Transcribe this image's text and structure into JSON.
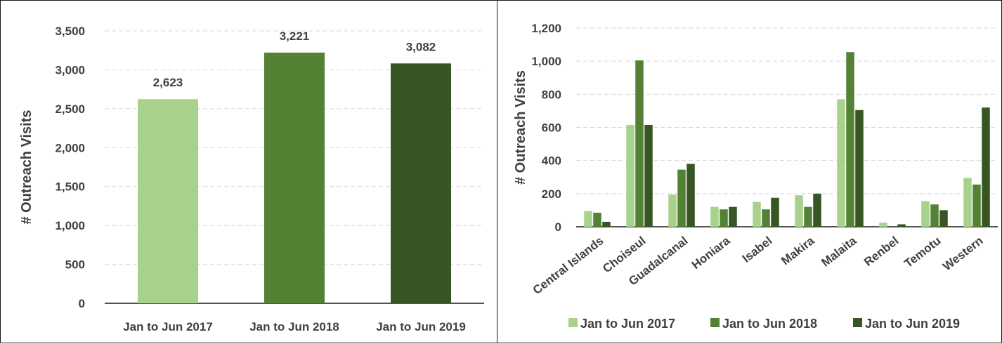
{
  "chart_data": [
    {
      "type": "bar",
      "title": "",
      "xlabel": "",
      "ylabel": "# Outreach Visits",
      "ylim": [
        0,
        3500
      ],
      "yticks": [
        0,
        500,
        1000,
        1500,
        2000,
        2500,
        3000,
        3500
      ],
      "ytick_labels": [
        "0",
        "500",
        "1,000",
        "1,500",
        "2,000",
        "2,500",
        "3,000",
        "3,500"
      ],
      "categories": [
        "Jan to Jun 2017",
        "Jan to Jun 2018",
        "Jan to Jun 2019"
      ],
      "values": [
        2623,
        3221,
        3082
      ],
      "data_labels": [
        "2,623",
        "3,221",
        "3,082"
      ],
      "colors": [
        "#a9d18e",
        "#548235",
        "#375623"
      ],
      "grid": true
    },
    {
      "type": "bar",
      "title": "",
      "xlabel": "",
      "ylabel": "# Outreach Visits",
      "ylim": [
        0,
        1200
      ],
      "yticks": [
        0,
        200,
        400,
        600,
        800,
        1000,
        1200
      ],
      "ytick_labels": [
        "0",
        "200",
        "400",
        "600",
        "800",
        "1,000",
        "1,200"
      ],
      "categories": [
        "Central Islands",
        "Choiseul",
        "Guadalcanal",
        "Honiara",
        "Isabel",
        "Makira",
        "Malaita",
        "Renbel",
        "Temotu",
        "Western"
      ],
      "series": [
        {
          "name": "Jan to Jun 2017",
          "color": "#a9d18e",
          "values": [
            95,
            615,
            195,
            120,
            150,
            190,
            770,
            25,
            155,
            295
          ]
        },
        {
          "name": "Jan to Jun 2018",
          "color": "#548235",
          "values": [
            85,
            1005,
            345,
            105,
            105,
            120,
            1055,
            0,
            135,
            255
          ]
        },
        {
          "name": "Jan to Jun 2019",
          "color": "#375623",
          "values": [
            30,
            615,
            380,
            120,
            175,
            200,
            705,
            15,
            100,
            720
          ]
        }
      ],
      "legend_position": "bottom",
      "grid": true
    }
  ]
}
